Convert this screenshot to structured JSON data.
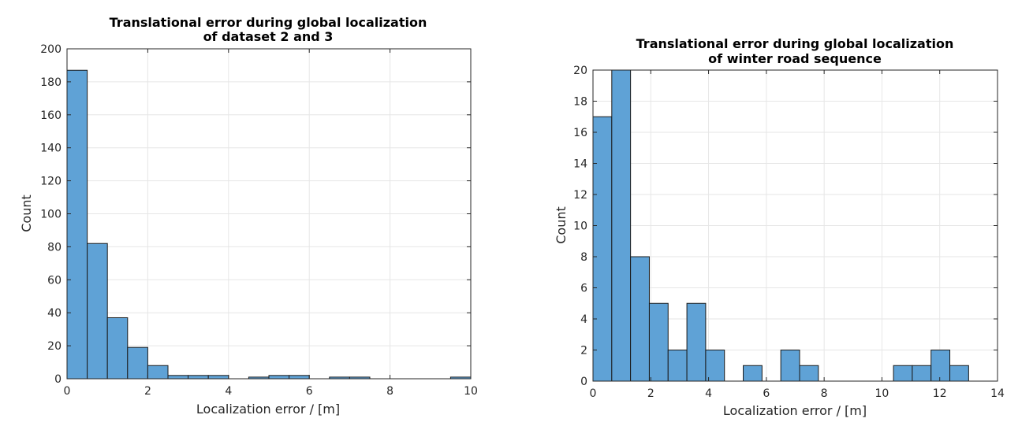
{
  "chart_data": [
    {
      "type": "bar",
      "title": [
        "Translational error during global localization",
        "of dataset 2 and 3"
      ],
      "xlabel": "Localization error / [m]",
      "ylabel": "Count",
      "xlim": [
        0,
        10
      ],
      "ylim": [
        0,
        200
      ],
      "xticks": [
        0,
        2,
        4,
        6,
        8,
        10
      ],
      "yticks": [
        0,
        20,
        40,
        60,
        80,
        100,
        120,
        140,
        160,
        180,
        200
      ],
      "grid": true,
      "bin_width": 0.5,
      "bins": [
        {
          "x": 0.0,
          "count": 187
        },
        {
          "x": 0.5,
          "count": 82
        },
        {
          "x": 1.0,
          "count": 37
        },
        {
          "x": 1.5,
          "count": 19
        },
        {
          "x": 2.0,
          "count": 8
        },
        {
          "x": 2.5,
          "count": 2
        },
        {
          "x": 3.0,
          "count": 2
        },
        {
          "x": 3.5,
          "count": 2
        },
        {
          "x": 4.0,
          "count": 0
        },
        {
          "x": 4.5,
          "count": 1
        },
        {
          "x": 5.0,
          "count": 2
        },
        {
          "x": 5.5,
          "count": 2
        },
        {
          "x": 6.0,
          "count": 0
        },
        {
          "x": 6.5,
          "count": 1
        },
        {
          "x": 7.0,
          "count": 1
        },
        {
          "x": 7.5,
          "count": 0
        },
        {
          "x": 8.0,
          "count": 0
        },
        {
          "x": 8.5,
          "count": 0
        },
        {
          "x": 9.0,
          "count": 0
        },
        {
          "x": 9.5,
          "count": 1
        }
      ]
    },
    {
      "type": "bar",
      "title": [
        "Translational error during global localization",
        "of winter road sequence"
      ],
      "xlabel": "Localization error / [m]",
      "ylabel": "Count",
      "xlim": [
        0,
        14
      ],
      "ylim": [
        0,
        20
      ],
      "xticks": [
        0,
        2,
        4,
        6,
        8,
        10,
        12,
        14
      ],
      "yticks": [
        0,
        2,
        4,
        6,
        8,
        10,
        12,
        14,
        16,
        18,
        20
      ],
      "grid": true,
      "bin_width": 0.65,
      "bins": [
        {
          "x": 0.0,
          "count": 17
        },
        {
          "x": 0.65,
          "count": 20
        },
        {
          "x": 1.3,
          "count": 8
        },
        {
          "x": 1.95,
          "count": 5
        },
        {
          "x": 2.6,
          "count": 2
        },
        {
          "x": 3.25,
          "count": 5
        },
        {
          "x": 3.9,
          "count": 2
        },
        {
          "x": 4.55,
          "count": 0
        },
        {
          "x": 5.2,
          "count": 1
        },
        {
          "x": 5.85,
          "count": 0
        },
        {
          "x": 6.5,
          "count": 2
        },
        {
          "x": 7.15,
          "count": 1
        },
        {
          "x": 7.8,
          "count": 0
        },
        {
          "x": 8.45,
          "count": 0
        },
        {
          "x": 9.1,
          "count": 0
        },
        {
          "x": 9.75,
          "count": 0
        },
        {
          "x": 10.4,
          "count": 1
        },
        {
          "x": 11.05,
          "count": 1
        },
        {
          "x": 11.7,
          "count": 2
        },
        {
          "x": 12.35,
          "count": 1
        }
      ]
    }
  ],
  "colors": {
    "bar_fill": "#5fa2d6",
    "bar_edge": "#1a1a1a",
    "grid": "#e6e6e6",
    "axes": "#262626"
  }
}
